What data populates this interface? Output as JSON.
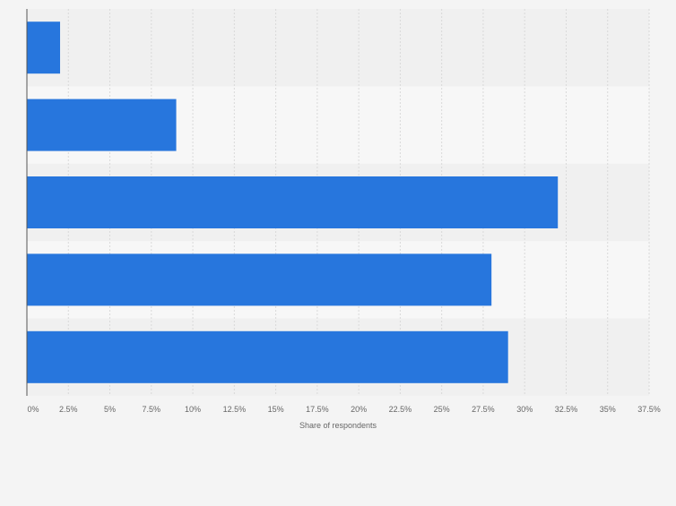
{
  "chart_data": {
    "type": "bar",
    "orientation": "horizontal",
    "categories": [
      "",
      "",
      "",
      "",
      ""
    ],
    "values": [
      2,
      9,
      32,
      28,
      29
    ],
    "xlabel": "Share of respondents",
    "ylabel": "",
    "xlim": [
      0,
      37.5
    ],
    "ticks": [
      "0%",
      "2.5%",
      "5%",
      "7.5%",
      "10%",
      "12.5%",
      "15%",
      "17.5%",
      "20%",
      "22.5%",
      "25%",
      "27.5%",
      "30%",
      "32.5%",
      "35%",
      "37.5%"
    ],
    "grid": true,
    "legend": "none",
    "colors": {
      "bar": "#2776dd",
      "band_dark": "#f0f0f0",
      "band_light": "#f7f7f7",
      "grid": "#d9d9d9",
      "axis": "#555555",
      "text": "#666666"
    }
  }
}
